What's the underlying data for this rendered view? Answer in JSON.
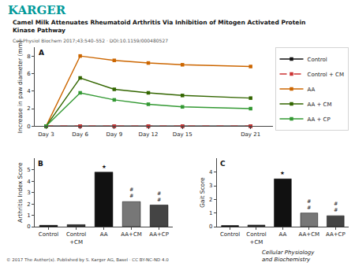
{
  "chart_data": [
    {
      "type": "line",
      "title": "Camel Milk Attenuates Rheumatoid Arthritis Via Inhibition of Mitogen Activated Protein\nKinase Pathway",
      "subtitle": "Cell Physiol Biochem 2017;43:540–552 · DOI:10.1159/000480527",
      "annotations": [
        {
          "text": "KARGER",
          "color": "#009999"
        },
        {
          "text": "© 2017 The Author(s). Published by S. Karger AG, Basel · CC BY-NC-ND 4.0"
        },
        {
          "text": "Cellular Physiology\nand Biochemistry"
        },
        {
          "text": "A"
        }
      ],
      "x": [
        3,
        6,
        9,
        12,
        15,
        21
      ],
      "xlim": [
        2,
        23
      ],
      "xticks": [
        {
          "value": 3,
          "label": "Day 3"
        },
        {
          "value": 6,
          "label": "Day 6"
        },
        {
          "value": 9,
          "label": "Day 9"
        },
        {
          "value": 12,
          "label": "Day 12"
        },
        {
          "value": 15,
          "label": "Day 15"
        },
        {
          "value": 21,
          "label": "Day 21"
        }
      ],
      "ylabel": "Increase in paw diameter (mm)",
      "ylim": [
        0,
        9
      ],
      "yticks": [
        0,
        2,
        4,
        6,
        8
      ],
      "grid": false,
      "legend": "upper right",
      "series": [
        {
          "name": "Control",
          "color": "#111111",
          "line_style": "solid",
          "marker": "square",
          "values": [
            0.0,
            0.0,
            0.0,
            0.0,
            0.0,
            0.0
          ]
        },
        {
          "name": "Control + CM",
          "color": "#cc3333",
          "line_style": "dashed",
          "marker": "square",
          "values": [
            0.0,
            0.0,
            0.0,
            0.0,
            0.0,
            0.0
          ]
        },
        {
          "name": "AA",
          "color": "#cc6600",
          "line_style": "solid",
          "marker": "square",
          "values": [
            0.0,
            8.0,
            7.5,
            7.2,
            7.0,
            6.8
          ]
        },
        {
          "name": "AA + CM",
          "color": "#336600",
          "line_style": "solid",
          "marker": "square",
          "values": [
            0.0,
            5.5,
            4.2,
            3.8,
            3.5,
            3.2
          ]
        },
        {
          "name": "AA + CP",
          "color": "#339933",
          "line_style": "solid",
          "marker": "square",
          "values": [
            0.0,
            3.8,
            3.0,
            2.5,
            2.2,
            2.0
          ]
        }
      ]
    },
    {
      "type": "bar",
      "annotations": [
        {
          "text": "B"
        },
        {
          "category": "AA",
          "text": "★"
        },
        {
          "category": "AA+CM",
          "text": "#\n#"
        },
        {
          "category": "AA+CP",
          "text": "#\n#"
        }
      ],
      "categories": [
        "Control",
        "Control\n+CM",
        "AA",
        "AA+CM",
        "AA+CP"
      ],
      "values": [
        0.12,
        0.18,
        4.8,
        2.2,
        1.9
      ],
      "colors": [
        "#111111",
        "#333333",
        "#111111",
        "#777777",
        "#444444"
      ],
      "ylabel": "Arthritis Index Score",
      "ylim": [
        0,
        6
      ],
      "yticks": [
        0,
        1,
        2,
        3,
        4,
        5
      ],
      "grid": false
    },
    {
      "type": "bar",
      "annotations": [
        {
          "text": "C"
        },
        {
          "category": "AA",
          "text": "★"
        },
        {
          "category": "AA+CM",
          "text": "#\n#"
        },
        {
          "category": "AA+CP",
          "text": "#\n#"
        }
      ],
      "categories": [
        "Control",
        "Control\n+CM",
        "AA",
        "AA+CM",
        "AA+CP"
      ],
      "values": [
        0.08,
        0.12,
        3.5,
        1.0,
        0.8
      ],
      "colors": [
        "#111111",
        "#333333",
        "#111111",
        "#777777",
        "#444444"
      ],
      "ylabel": "Gait Score",
      "ylim": [
        0,
        5
      ],
      "yticks": [
        0,
        1,
        2,
        3,
        4
      ],
      "grid": false
    }
  ]
}
